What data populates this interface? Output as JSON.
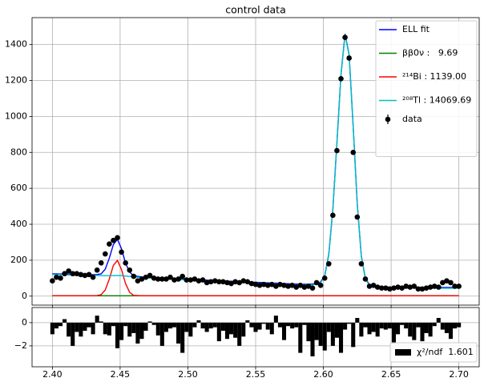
{
  "chart_data": [
    {
      "type": "line",
      "title": "control data",
      "x": [
        2.4,
        2.403,
        2.406,
        2.409,
        2.412,
        2.415,
        2.418,
        2.421,
        2.424,
        2.427,
        2.43,
        2.433,
        2.436,
        2.439,
        2.442,
        2.445,
        2.448,
        2.451,
        2.454,
        2.457,
        2.46,
        2.463,
        2.466,
        2.469,
        2.472,
        2.475,
        2.478,
        2.481,
        2.484,
        2.487,
        2.49,
        2.493,
        2.496,
        2.499,
        2.502,
        2.505,
        2.508,
        2.511,
        2.514,
        2.517,
        2.52,
        2.523,
        2.526,
        2.529,
        2.532,
        2.535,
        2.538,
        2.541,
        2.544,
        2.547,
        2.55,
        2.553,
        2.556,
        2.559,
        2.562,
        2.565,
        2.568,
        2.571,
        2.574,
        2.577,
        2.58,
        2.583,
        2.586,
        2.589,
        2.592,
        2.595,
        2.598,
        2.601,
        2.604,
        2.607,
        2.61,
        2.613,
        2.616,
        2.619,
        2.622,
        2.625,
        2.628,
        2.631,
        2.634,
        2.637,
        2.64,
        2.643,
        2.646,
        2.649,
        2.652,
        2.655,
        2.658,
        2.661,
        2.664,
        2.667,
        2.67,
        2.673,
        2.676,
        2.679,
        2.682,
        2.685,
        2.688,
        2.691,
        2.694,
        2.697,
        2.7
      ],
      "series": [
        {
          "name": "ELL fit",
          "color": "#0000ff",
          "values": [
            124,
            124,
            123,
            123,
            122,
            122,
            121,
            121,
            120,
            120,
            119,
            120,
            124,
            150,
            211,
            287,
            316,
            264,
            184,
            133,
            114,
            110,
            107,
            105,
            104,
            102,
            101,
            100,
            99,
            98,
            97,
            96,
            95,
            94,
            93,
            92,
            91,
            90,
            89,
            88,
            87,
            86,
            85,
            84,
            83,
            82,
            81,
            80,
            79,
            78,
            77,
            76,
            75,
            74,
            73,
            72,
            71,
            70,
            69,
            68,
            67,
            66,
            66,
            66,
            67,
            70,
            79,
            114,
            234,
            484,
            854,
            1234,
            1459,
            1344,
            944,
            514,
            224,
            99,
            64,
            54,
            52,
            51,
            51,
            50,
            50,
            50,
            49,
            49,
            49,
            49,
            49,
            48,
            48,
            48,
            48,
            48,
            48,
            48,
            48,
            48,
            48
          ]
        },
        {
          "name": "ββ0ν :   9.69",
          "color": "#008000",
          "values": [
            2,
            2,
            2,
            2,
            2,
            2,
            2,
            2,
            2,
            2,
            2,
            2,
            2,
            2,
            2,
            2,
            2,
            2,
            2,
            2,
            2,
            2,
            2,
            2,
            2,
            2,
            2,
            2,
            2,
            2,
            2,
            2,
            2,
            2,
            2,
            2,
            2,
            2,
            2,
            2,
            2,
            2,
            2,
            2,
            2,
            2,
            2,
            2,
            2,
            2,
            2,
            2,
            2,
            2,
            2,
            2,
            2,
            2,
            2,
            2,
            2,
            2,
            2,
            2,
            2,
            2,
            2,
            2,
            2,
            2,
            2,
            2,
            2,
            2,
            2,
            2,
            2,
            2,
            2,
            2,
            2,
            2,
            2,
            2,
            2,
            2,
            2,
            2,
            2,
            2,
            2,
            2,
            2,
            2,
            2,
            2,
            2,
            2,
            2,
            2,
            2
          ]
        },
        {
          "name": "²¹⁴Bi : 1139.00",
          "color": "#ff0000",
          "values": [
            2,
            2,
            2,
            2,
            2,
            2,
            2,
            2,
            2,
            2,
            2,
            3,
            8,
            34,
            95,
            171,
            199,
            148,
            70,
            21,
            4,
            3,
            2,
            2,
            2,
            2,
            2,
            2,
            2,
            2,
            2,
            2,
            2,
            2,
            2,
            2,
            2,
            2,
            2,
            2,
            2,
            2,
            2,
            2,
            2,
            2,
            2,
            2,
            2,
            2,
            2,
            2,
            2,
            2,
            2,
            2,
            2,
            2,
            2,
            2,
            2,
            2,
            2,
            2,
            2,
            2,
            2,
            2,
            2,
            2,
            2,
            2,
            2,
            2,
            2,
            2,
            2,
            2,
            2,
            2,
            2,
            2,
            2,
            2,
            2,
            2,
            2,
            2,
            2,
            2,
            2,
            2,
            2,
            2,
            2,
            2,
            2,
            2,
            2,
            2,
            2
          ]
        },
        {
          "name": "²⁰⁸Tl : 14069.69",
          "color": "#00bfbf",
          "values": [
            120,
            120,
            119,
            119,
            118,
            118,
            117,
            117,
            116,
            116,
            115,
            115,
            114,
            114,
            114,
            114,
            115,
            114,
            112,
            110,
            108,
            105,
            103,
            101,
            100,
            98,
            97,
            96,
            95,
            94,
            93,
            92,
            91,
            90,
            89,
            88,
            87,
            86,
            85,
            84,
            83,
            82,
            81,
            80,
            79,
            78,
            77,
            76,
            75,
            74,
            73,
            72,
            71,
            70,
            69,
            68,
            67,
            66,
            65,
            64,
            63,
            62,
            62,
            62,
            63,
            66,
            75,
            110,
            230,
            480,
            850,
            1230,
            1455,
            1340,
            940,
            510,
            220,
            95,
            60,
            50,
            48,
            47,
            47,
            46,
            46,
            46,
            45,
            45,
            45,
            45,
            45,
            44,
            44,
            44,
            44,
            44,
            44,
            44,
            44,
            44,
            44
          ]
        },
        {
          "name": "data",
          "color": "#000000",
          "style": "points",
          "values": [
            85,
            105,
            100,
            125,
            140,
            125,
            125,
            120,
            115,
            120,
            105,
            145,
            185,
            235,
            290,
            310,
            325,
            245,
            185,
            145,
            110,
            85,
            95,
            105,
            115,
            100,
            95,
            95,
            95,
            105,
            90,
            95,
            110,
            90,
            90,
            95,
            85,
            90,
            75,
            80,
            85,
            80,
            80,
            75,
            70,
            80,
            75,
            85,
            80,
            70,
            65,
            60,
            65,
            60,
            65,
            55,
            65,
            60,
            55,
            60,
            50,
            60,
            50,
            55,
            45,
            75,
            60,
            100,
            180,
            450,
            810,
            1210,
            1440,
            1325,
            800,
            440,
            180,
            95,
            55,
            60,
            50,
            45,
            45,
            40,
            45,
            50,
            45,
            55,
            50,
            55,
            40,
            40,
            45,
            50,
            55,
            50,
            75,
            85,
            75,
            55,
            55
          ]
        }
      ],
      "xlim": [
        2.385,
        2.715
      ],
      "ylim": [
        -50,
        1550
      ],
      "yticks": [
        0,
        200,
        400,
        600,
        800,
        1000,
        1200,
        1400
      ],
      "grid": true,
      "legend": "upper right"
    },
    {
      "type": "bar",
      "x": [
        2.4,
        2.403,
        2.406,
        2.409,
        2.412,
        2.415,
        2.418,
        2.421,
        2.424,
        2.427,
        2.43,
        2.433,
        2.436,
        2.439,
        2.442,
        2.445,
        2.448,
        2.451,
        2.454,
        2.457,
        2.46,
        2.463,
        2.466,
        2.469,
        2.472,
        2.475,
        2.478,
        2.481,
        2.484,
        2.487,
        2.49,
        2.493,
        2.496,
        2.499,
        2.502,
        2.505,
        2.508,
        2.511,
        2.514,
        2.517,
        2.52,
        2.523,
        2.526,
        2.529,
        2.532,
        2.535,
        2.538,
        2.541,
        2.544,
        2.547,
        2.55,
        2.553,
        2.556,
        2.559,
        2.562,
        2.565,
        2.568,
        2.571,
        2.574,
        2.577,
        2.58,
        2.583,
        2.586,
        2.589,
        2.592,
        2.595,
        2.598,
        2.601,
        2.604,
        2.607,
        2.61,
        2.613,
        2.616,
        2.619,
        2.622,
        2.625,
        2.628,
        2.631,
        2.634,
        2.637,
        2.64,
        2.643,
        2.646,
        2.649,
        2.652,
        2.655,
        2.658,
        2.661,
        2.664,
        2.667,
        2.67,
        2.673,
        2.676,
        2.679,
        2.682,
        2.685,
        2.688,
        2.691,
        2.694,
        2.697,
        2.7
      ],
      "series": [
        {
          "name": "χ²/ndf  1.601",
          "color": "#000000",
          "values": [
            -1.0,
            -0.5,
            -0.3,
            0.3,
            -1.2,
            -2.0,
            -0.8,
            -1.2,
            -0.7,
            -0.4,
            -1.0,
            0.6,
            0.1,
            -1.0,
            -1.1,
            -0.3,
            -2.2,
            -1.5,
            -0.3,
            -1.2,
            -0.9,
            -1.8,
            -1.4,
            -0.7,
            0.1,
            -0.2,
            -1.1,
            -2.0,
            -0.8,
            -0.5,
            -0.4,
            -1.8,
            -2.6,
            -0.8,
            -1.2,
            -0.4,
            0.2,
            -0.5,
            -0.8,
            -0.5,
            -0.4,
            -1.6,
            -0.7,
            -1.4,
            -1.0,
            -1.3,
            -2.0,
            -1.2,
            0.2,
            -0.4,
            -0.8,
            -0.6,
            -0.1,
            -0.6,
            -1.0,
            0.6,
            -0.4,
            -1.5,
            -0.3,
            -0.5,
            -0.4,
            -2.6,
            -0.2,
            -1.6,
            -2.9,
            -1.5,
            -2.0,
            -2.4,
            -0.8,
            -2.0,
            -1.3,
            -2.6,
            -0.6,
            -0.1,
            -2.1,
            0.4,
            -1.2,
            -0.4,
            -1.0,
            -0.8,
            -1.2,
            -0.5,
            -0.6,
            -0.5,
            -1.8,
            -1.0,
            -0.2,
            -0.5,
            -1.2,
            -1.5,
            -0.4,
            -1.6,
            -0.9,
            -1.2,
            -0.3,
            0.4,
            -0.6,
            -0.9,
            -1.4,
            -0.5,
            -0.4
          ]
        }
      ],
      "xlim": [
        2.385,
        2.715
      ],
      "ylim": [
        -3.8,
        1.3
      ],
      "xticks": [
        {
          "value": 2.4,
          "label": "2.40"
        },
        2.45,
        {
          "value": 2.5,
          "label": "2.50"
        },
        2.55,
        {
          "value": 2.6,
          "label": "2.60"
        },
        2.65,
        {
          "value": 2.7,
          "label": "2.70"
        }
      ],
      "yticks": [
        0,
        {
          "value": -2,
          "label": "−2"
        }
      ],
      "grid": true,
      "legend": "lower right"
    }
  ]
}
